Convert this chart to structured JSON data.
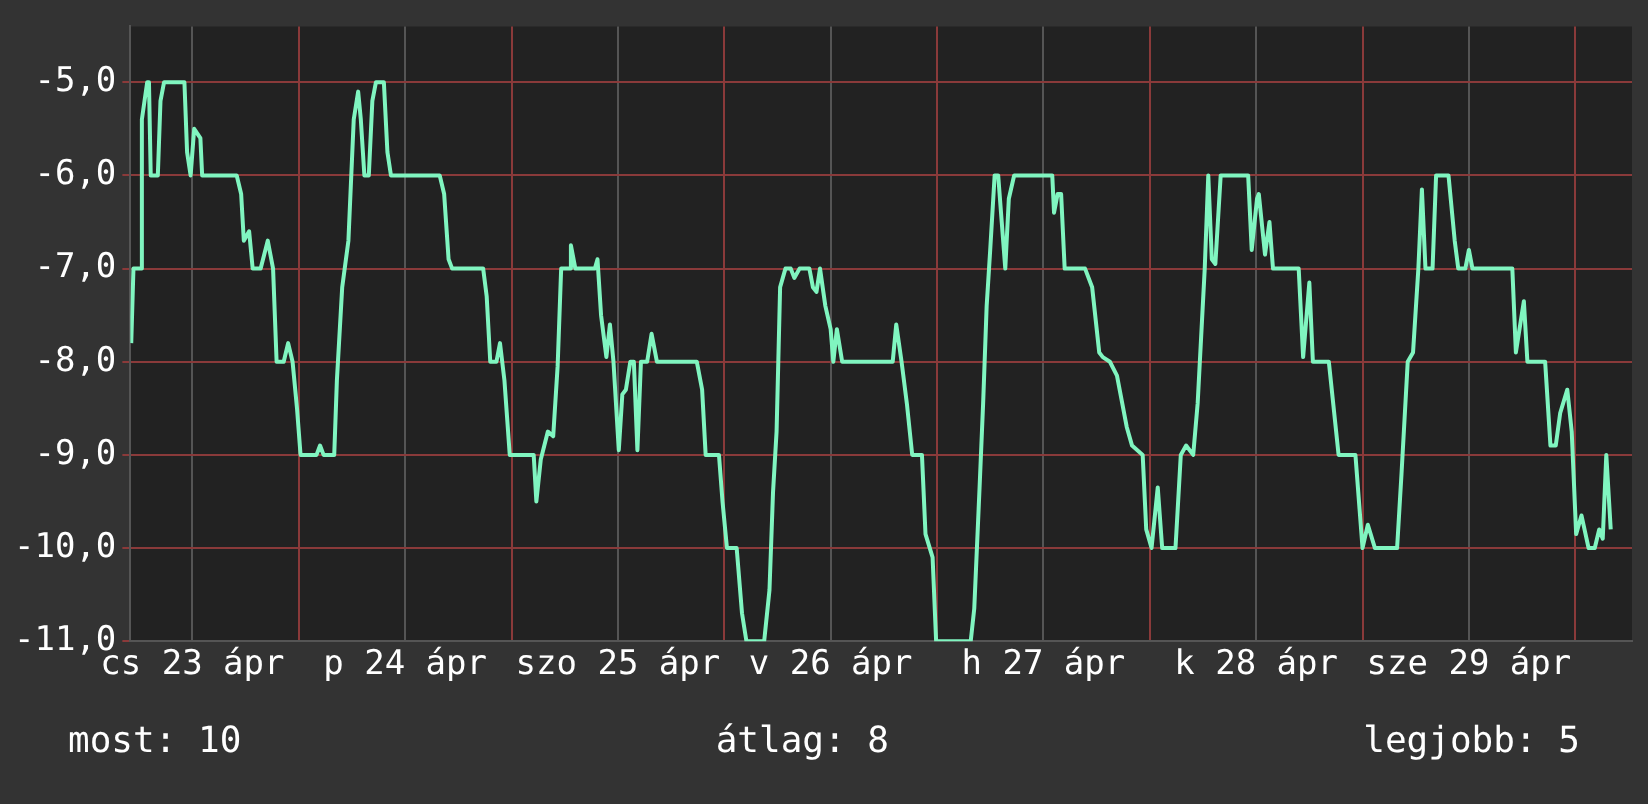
{
  "chart_data": {
    "type": "line",
    "annotations": [
      "most: 10",
      "átlag: 8",
      "legjobb: 5"
    ],
    "xlim": [
      "--04-23T05:00",
      "--04-30T06:24"
    ],
    "xticks": [
      {
        "value": "--04-23T12:00",
        "label": "cs 23 ápr"
      },
      {
        "value": "--04-24T00:00",
        "label": null
      },
      {
        "value": "--04-24T12:00",
        "label": "p 24 ápr"
      },
      {
        "value": "--04-25T00:00",
        "label": null
      },
      {
        "value": "--04-25T12:00",
        "label": "szo 25 ápr"
      },
      {
        "value": "--04-26T00:00",
        "label": null
      },
      {
        "value": "--04-26T12:00",
        "label": "v 26 ápr"
      },
      {
        "value": "--04-27T00:00",
        "label": null
      },
      {
        "value": "--04-27T12:00",
        "label": "h 27 ápr"
      },
      {
        "value": "--04-28T00:00",
        "label": null
      },
      {
        "value": "--04-28T12:00",
        "label": "k 28 ápr"
      },
      {
        "value": "--04-29T00:00",
        "label": null
      },
      {
        "value": "--04-29T12:00",
        "label": "sze 29 ápr"
      },
      {
        "value": "--04-30T00:00",
        "label": null
      }
    ],
    "ylim": [
      -11,
      -4.4
    ],
    "yticks": [
      {
        "value": -11,
        "label": "-11,0"
      },
      {
        "value": -10,
        "label": "-10,0"
      },
      {
        "value": -9,
        "label": "-9,0"
      },
      {
        "value": -8,
        "label": "-8,0"
      },
      {
        "value": -7,
        "label": "-7,0"
      },
      {
        "value": -6,
        "label": "-6,0"
      },
      {
        "value": -5,
        "label": "-5,0"
      }
    ],
    "grid": true,
    "marker": "none",
    "line_style": "solid",
    "series": [
      {
        "color": "#80f5c0",
        "x": [
          "--04-23T05:06",
          "--04-23T05:21",
          "--04-23T06:06",
          "--04-23T06:18",
          "--04-23T06:54",
          "--04-23T07:06",
          "--04-23T07:18",
          "--04-23T08:06",
          "--04-23T08:24",
          "--04-23T08:48",
          "--04-23T11:06",
          "--04-23T11:24",
          "--04-23T11:48",
          "--04-23T12:12",
          "--04-23T12:54",
          "--04-23T13:06",
          "--04-23T17:00",
          "--04-23T17:30",
          "--04-23T17:48",
          "--04-23T18:24",
          "--04-23T18:48",
          "--04-23T19:42",
          "--04-23T20:30",
          "--04-23T21:06",
          "--04-23T21:30",
          "--04-23T22:18",
          "--04-23T22:48",
          "--04-23T23:18",
          "--04-23T23:48",
          "--04-24T00:12",
          "--04-24T02:00",
          "--04-24T02:24",
          "--04-24T02:48",
          "--04-24T04:00",
          "--04-24T04:18",
          "--04-24T04:54",
          "--04-24T05:36",
          "--04-24T06:12",
          "--04-24T06:42",
          "--04-24T07:00",
          "--04-24T07:24",
          "--04-24T07:54",
          "--04-24T08:18",
          "--04-24T08:42",
          "--04-24T09:36",
          "--04-24T10:00",
          "--04-24T10:24",
          "--04-24T15:54",
          "--04-24T16:24",
          "--04-24T16:54",
          "--04-24T17:18",
          "--04-24T20:48",
          "--04-24T21:12",
          "--04-24T21:36",
          "--04-24T22:18",
          "--04-24T22:42",
          "--04-24T23:12",
          "--04-24T23:48",
          "--04-25T02:30",
          "--04-25T02:48",
          "--04-25T03:18",
          "--04-25T04:06",
          "--04-25T04:42",
          "--04-25T05:12",
          "--04-25T05:36",
          "--04-25T06:36",
          "--04-25T06:42",
          "--04-25T07:12",
          "--04-25T09:24",
          "--04-25T09:42",
          "--04-25T10:06",
          "--04-25T10:42",
          "--04-25T11:06",
          "--04-25T11:30",
          "--04-25T12:06",
          "--04-25T12:30",
          "--04-25T12:54",
          "--04-25T13:24",
          "--04-25T13:48",
          "--04-25T14:12",
          "--04-25T14:36",
          "--04-25T15:18",
          "--04-25T15:48",
          "--04-25T16:24",
          "--04-25T20:54",
          "--04-25T21:30",
          "--04-25T21:54",
          "--04-25T23:24",
          "--04-25T23:48",
          "--04-26T00:18",
          "--04-26T01:24",
          "--04-26T02:00",
          "--04-26T02:30",
          "--04-26T04:30",
          "--04-26T05:06",
          "--04-26T05:30",
          "--04-26T05:54",
          "--04-26T06:18",
          "--04-26T06:54",
          "--04-26T07:30",
          "--04-26T07:54",
          "--04-26T08:30",
          "--04-26T09:36",
          "--04-26T10:00",
          "--04-26T10:24",
          "--04-26T10:48",
          "--04-26T11:24",
          "--04-26T12:00",
          "--04-26T12:18",
          "--04-26T12:42",
          "--04-26T13:18",
          "--04-26T19:00",
          "--04-26T19:24",
          "--04-26T20:00",
          "--04-26T20:36",
          "--04-26T21:12",
          "--04-26T22:18",
          "--04-26T22:42",
          "--04-26T23:30",
          "--04-26T23:54",
          "--04-27T03:48",
          "--04-27T04:12",
          "--04-27T04:48",
          "--04-27T05:12",
          "--04-27T05:36",
          "--04-27T06:00",
          "--04-27T06:30",
          "--04-27T06:54",
          "--04-27T07:18",
          "--04-27T07:42",
          "--04-27T08:06",
          "--04-27T08:42",
          "--04-27T13:00",
          "--04-27T13:12",
          "--04-27T13:36",
          "--04-27T14:00",
          "--04-27T14:24",
          "--04-27T16:42",
          "--04-27T17:30",
          "--04-27T18:18",
          "--04-27T18:42",
          "--04-27T19:30",
          "--04-27T20:18",
          "--04-27T21:24",
          "--04-27T22:00",
          "--04-27T23:12",
          "--04-27T23:36",
          "--04-28T00:12",
          "--04-28T00:54",
          "--04-28T01:24",
          "--04-28T02:54",
          "--04-28T03:30",
          "--04-28T04:06",
          "--04-28T04:54",
          "--04-28T05:24",
          "--04-28T06:12",
          "--04-28T06:36",
          "--04-28T07:00",
          "--04-28T07:24",
          "--04-28T08:00",
          "--04-28T11:06",
          "--04-28T11:30",
          "--04-28T12:06",
          "--04-28T12:18",
          "--04-28T13:00",
          "--04-28T13:30",
          "--04-28T13:54",
          "--04-28T16:48",
          "--04-28T17:18",
          "--04-28T18:00",
          "--04-28T18:24",
          "--04-28T20:12",
          "--04-28T21:18",
          "--04-28T23:12",
          "--04-29T00:00",
          "--04-29T00:36",
          "--04-29T01:24",
          "--04-29T03:54",
          "--04-29T04:24",
          "--04-29T05:06",
          "--04-29T05:42",
          "--04-29T06:18",
          "--04-29T06:42",
          "--04-29T07:06",
          "--04-29T07:54",
          "--04-29T08:18",
          "--04-29T09:42",
          "--04-29T10:24",
          "--04-29T10:48",
          "--04-29T11:36",
          "--04-29T12:00",
          "--04-29T12:24",
          "--04-29T16:54",
          "--04-29T17:18",
          "--04-29T18:12",
          "--04-29T18:36",
          "--04-29T20:36",
          "--04-29T21:12",
          "--04-29T21:48",
          "--04-29T22:18",
          "--04-29T23:06",
          "--04-29T23:36",
          "--04-30T00:06",
          "--04-30T00:42",
          "--04-30T01:30",
          "--04-30T02:12",
          "--04-30T02:42",
          "--04-30T03:06",
          "--04-30T03:30",
          "--04-30T04:00"
        ],
        "values": [
          -7.8,
          -7,
          -7,
          -5.4,
          -5,
          -5,
          -6,
          -6,
          -5.2,
          -5,
          -5,
          -5.75,
          -6,
          -5.5,
          -5.6,
          -6,
          -6,
          -6.2,
          -6.7,
          -6.6,
          -7,
          -7,
          -6.7,
          -7,
          -8,
          -8,
          -7.8,
          -8,
          -8.5,
          -9,
          -9,
          -8.9,
          -9,
          -9,
          -8.2,
          -7.2,
          -6.7,
          -5.4,
          -5.1,
          -5.4,
          -6,
          -6,
          -5.2,
          -5,
          -5,
          -5.75,
          -6,
          -6,
          -6.2,
          -6.9,
          -7,
          -7,
          -7.3,
          -8,
          -8,
          -7.8,
          -8.2,
          -9,
          -9,
          -9.5,
          -9.05,
          -8.75,
          -8.8,
          -8.05,
          -7,
          -7,
          -6.75,
          -7,
          -7,
          -6.9,
          -7.5,
          -7.95,
          -7.6,
          -8,
          -8.95,
          -8.35,
          -8.3,
          -8,
          -8,
          -8.95,
          -8,
          -8,
          -7.7,
          -8,
          -8,
          -8.3,
          -9,
          -9,
          -9.5,
          -10,
          -10,
          -10.7,
          -11,
          -11,
          -10.45,
          -9.4,
          -8.75,
          -7.2,
          -7,
          -7,
          -7.1,
          -7,
          -7,
          -7.2,
          -7.25,
          -7,
          -7.4,
          -7.65,
          -8,
          -7.65,
          -8,
          -8,
          -7.6,
          -8,
          -8.45,
          -9,
          -9,
          -9.85,
          -10.1,
          -11,
          -11,
          -10.65,
          -9.35,
          -8.45,
          -7.4,
          -6.8,
          -6,
          -6,
          -6.5,
          -7,
          -6.25,
          -6,
          -6,
          -6.4,
          -6.2,
          -6.2,
          -7,
          -7,
          -7.2,
          -7.9,
          -7.95,
          -8,
          -8.15,
          -8.7,
          -8.9,
          -9,
          -9.8,
          -10,
          -9.35,
          -10,
          -10,
          -9,
          -8.9,
          -9,
          -8.45,
          -7,
          -6,
          -6.9,
          -6.95,
          -6,
          -6,
          -6.8,
          -6.25,
          -6.2,
          -6.85,
          -6.5,
          -7,
          -7,
          -7.95,
          -7.15,
          -8,
          -8,
          -9,
          -9,
          -10,
          -9.75,
          -10,
          -10,
          -9.2,
          -8,
          -7.9,
          -7,
          -6.15,
          -7,
          -7,
          -6,
          -6,
          -6.7,
          -7,
          -7,
          -6.8,
          -7,
          -7,
          -7.9,
          -7.35,
          -8,
          -8,
          -8.9,
          -8.9,
          -8.55,
          -8.3,
          -8.75,
          -9.85,
          -9.65,
          -10,
          -10,
          -9.8,
          -9.9,
          -9,
          -9.8
        ]
      }
    ]
  }
}
